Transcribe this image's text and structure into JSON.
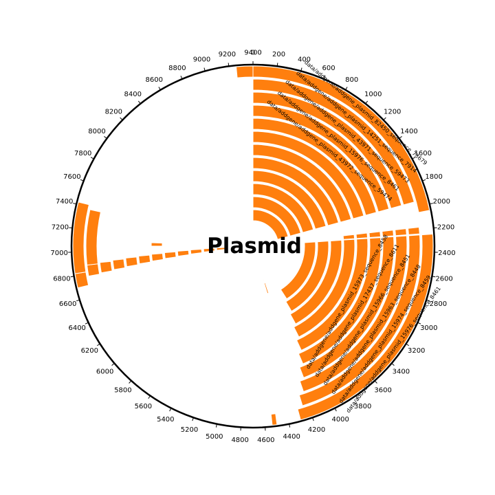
{
  "title": "Plasmid",
  "colors": {
    "feature": "#ff7f0e",
    "feature_stroke": "#ffffff",
    "axis": "#000000",
    "background": "#ffffff"
  },
  "axis": {
    "total_length": 9400,
    "tick_values": [
      0,
      200,
      400,
      600,
      800,
      1000,
      1200,
      1400,
      1600,
      1800,
      2000,
      2200,
      2400,
      2600,
      2800,
      3000,
      3200,
      3400,
      3600,
      3800,
      4000,
      4200,
      4400,
      4600,
      4800,
      5000,
      5200,
      5400,
      5600,
      5800,
      6000,
      6200,
      6400,
      6600,
      6800,
      7000,
      7200,
      7400,
      7600,
      7800,
      8000,
      8200,
      8400,
      8600,
      8800,
      9000,
      9200,
      9400
    ],
    "tick_labels": [
      "0",
      "200",
      "400",
      "600",
      "800",
      "1000",
      "1200",
      "1400",
      "1600",
      "1800",
      "2000",
      "2200",
      "2400",
      "2600",
      "2800",
      "3000",
      "3200",
      "3400",
      "3600",
      "3800",
      "4000",
      "4200",
      "4400",
      "4600",
      "4800",
      "5000",
      "5200",
      "5400",
      "5600",
      "5800",
      "6000",
      "6200",
      "6400",
      "6600",
      "6800",
      "7000",
      "7200",
      "7400",
      "7600",
      "7800",
      "8000",
      "8200",
      "8400",
      "8600",
      "8800",
      "9000",
      "9200",
      "9400"
    ]
  },
  "tracks": {
    "upper_block": [
      {
        "start": 0,
        "end": 2050,
        "label": "data/addgene/addgene_plasmid_82450_sequence_73679"
      },
      {
        "start": 0,
        "end": 1950,
        "label": "data/addgene/addgene_plasmid_14251_sequence_7914"
      },
      {
        "start": 0,
        "end": 1950,
        "label": "data/addgene/addgene_plasmid_43971_sequence_59473"
      },
      {
        "start": 0,
        "end": 1950,
        "label": "data/addgene/addgene_plasmid_15976_sequence_8461"
      },
      {
        "start": 0,
        "end": 1950,
        "label": "data/addgene/addgene_plasmid_43972_sequence_59474"
      },
      {
        "start": 0,
        "end": 1950,
        "label": ""
      },
      {
        "start": 0,
        "end": 1950,
        "label": ""
      },
      {
        "start": 0,
        "end": 1950,
        "label": ""
      },
      {
        "start": 0,
        "end": 1950,
        "label": ""
      },
      {
        "start": 0,
        "end": 1950,
        "label": ""
      },
      {
        "start": 0,
        "end": 1950,
        "label": ""
      },
      {
        "start": 0,
        "end": 1950,
        "label": ""
      }
    ],
    "lower_block": [
      {
        "start": 2250,
        "end": 4300,
        "label": "data/addgene/addgene_plasmid_15976_sequence_8461"
      },
      {
        "start": 2250,
        "end": 4250,
        "label": "data/addgene/addgene_plasmid_15974_sequence_8459"
      },
      {
        "start": 2250,
        "end": 4200,
        "label": "data/addgene/addgene_plasmid_15963_sequence_8448"
      },
      {
        "start": 2250,
        "end": 4150,
        "label": "data/addgene/addgene_plasmid_15966_sequence_8451"
      },
      {
        "start": 2250,
        "end": 4100,
        "label": "data/addgene/addgene_plasmid_17437_sequence_8611"
      },
      {
        "start": 2250,
        "end": 4050,
        "label": "data/addgene/addgene_plasmid_15973_sequence_8458"
      },
      {
        "start": 2250,
        "end": 4000,
        "label": ""
      },
      {
        "start": 2250,
        "end": 3950,
        "label": ""
      },
      {
        "start": 2250,
        "end": 3900,
        "label": ""
      },
      {
        "start": 2250,
        "end": 3850,
        "label": ""
      }
    ],
    "small_features": [
      {
        "start": 2180,
        "end": 2240,
        "track": 1
      },
      {
        "start": 2180,
        "end": 2240,
        "track": 2
      },
      {
        "start": 2180,
        "end": 2240,
        "track": 3
      },
      {
        "start": 2180,
        "end": 2240,
        "track": 4
      },
      {
        "start": 2180,
        "end": 2240,
        "track": 5
      },
      {
        "start": 2180,
        "end": 2240,
        "track": 6
      },
      {
        "start": 4500,
        "end": 4540,
        "track": 0
      },
      {
        "start": 4220,
        "end": 4260,
        "track": 10
      },
      {
        "start": 4240,
        "end": 4270,
        "track": 11
      },
      {
        "start": 9260,
        "end": 9400,
        "track": 0
      },
      {
        "start": 7050,
        "end": 7100,
        "track": 6
      }
    ],
    "left_block": [
      {
        "start": 6700,
        "end": 6820,
        "track": 0
      },
      {
        "start": 6780,
        "end": 6880,
        "track": 1
      },
      {
        "start": 6790,
        "end": 6890,
        "track": 2
      },
      {
        "start": 6800,
        "end": 6900,
        "track": 3
      },
      {
        "start": 6810,
        "end": 6910,
        "track": 4
      },
      {
        "start": 6820,
        "end": 6920,
        "track": 5
      },
      {
        "start": 6830,
        "end": 6930,
        "track": 6
      },
      {
        "start": 6840,
        "end": 6940,
        "track": 7
      },
      {
        "start": 6850,
        "end": 6950,
        "track": 8
      },
      {
        "start": 6860,
        "end": 6960,
        "track": 9
      },
      {
        "start": 6870,
        "end": 6970,
        "track": 10
      },
      {
        "start": 6880,
        "end": 6980,
        "track": 11
      },
      {
        "start": 6820,
        "end": 7420,
        "track": 0
      },
      {
        "start": 6880,
        "end": 7380,
        "track": 1
      }
    ]
  }
}
